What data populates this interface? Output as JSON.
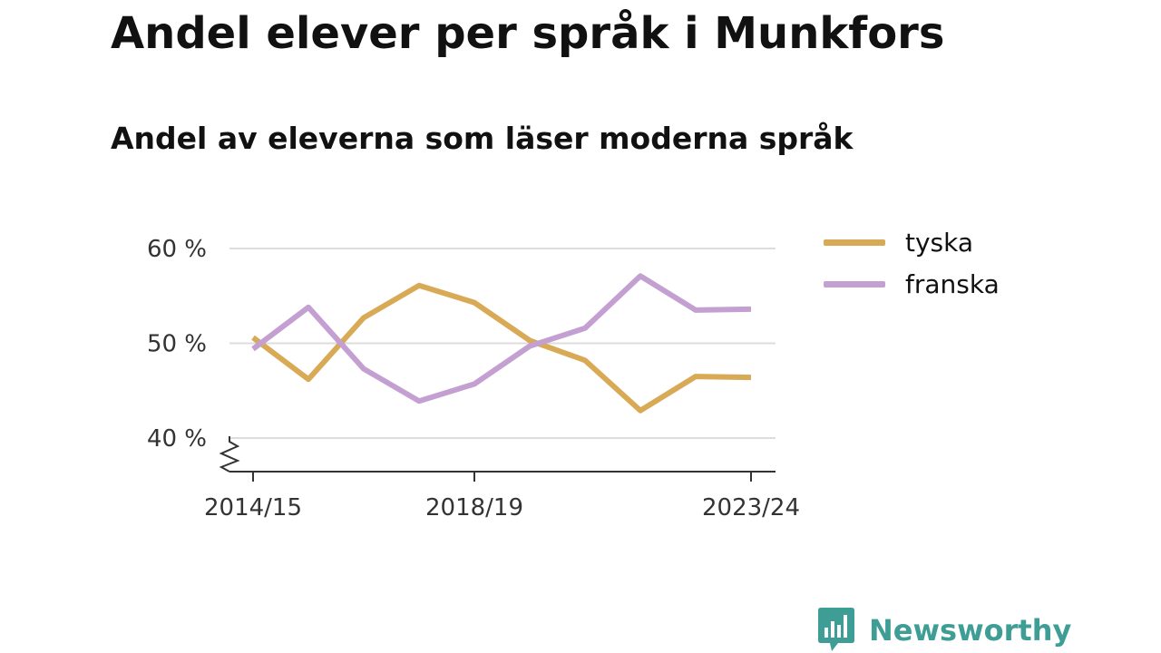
{
  "title": "Andel elever per språk i Munkfors",
  "subtitle": "Andel av eleverna som läser moderna språk",
  "brand": {
    "name": "Newsworthy",
    "color": "#3e9e96",
    "icon": "bar-chart-speech-bubble-icon"
  },
  "chart_data": {
    "type": "line",
    "x": [
      "2014/15",
      "2015/16",
      "2016/17",
      "2017/18",
      "2018/19",
      "2019/20",
      "2020/21",
      "2021/22",
      "2022/23",
      "2023/24"
    ],
    "x_tick_labels": [
      "2014/15",
      "2018/19",
      "2023/24"
    ],
    "y_ticks": [
      {
        "value": 40,
        "label": "40 %"
      },
      {
        "value": 50,
        "label": "50 %"
      },
      {
        "value": 60,
        "label": "60 %"
      }
    ],
    "ylim": [
      37,
      62
    ],
    "y_axis_break": true,
    "grid": true,
    "legend_position": "top-right",
    "series": [
      {
        "name": "tyska",
        "color": "#d9aa56",
        "values": [
          50.6,
          46.2,
          52.7,
          56.1,
          54.3,
          50.3,
          48.2,
          42.9,
          46.5,
          46.4
        ]
      },
      {
        "name": "franska",
        "color": "#c49fd1",
        "values": [
          49.4,
          53.8,
          47.3,
          43.9,
          45.7,
          49.7,
          51.6,
          57.1,
          53.5,
          53.6
        ]
      }
    ],
    "xlabel": "",
    "ylabel": ""
  }
}
